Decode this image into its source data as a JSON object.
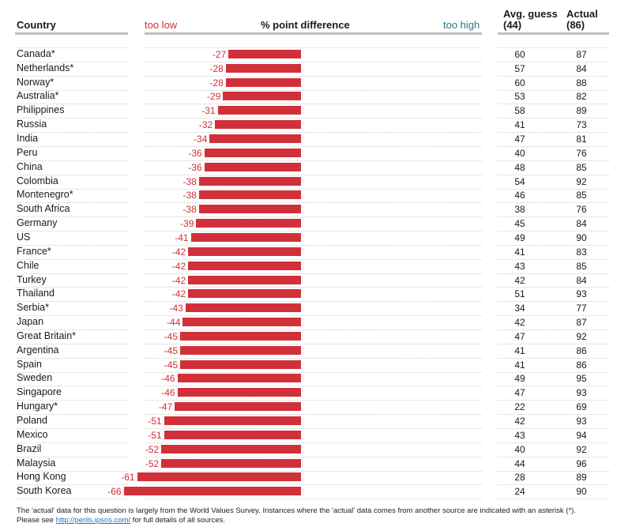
{
  "header": {
    "country": "Country",
    "too_low": "too low",
    "pct_diff": "% point difference",
    "too_high": "too high",
    "avg_guess_line1": "Avg. guess",
    "avg_guess_line2": "(44)",
    "actual_line1": "Actual",
    "actual_line2": "(86)"
  },
  "colors": {
    "bar": "#d1303a",
    "label": "#d1303a",
    "too_high": "#2a7b8c"
  },
  "chart_data": {
    "type": "bar",
    "xlabel": "% point difference",
    "categories": [
      "Canada*",
      "Netherlands*",
      "Norway*",
      "Australia*",
      "Philippines",
      "Russia",
      "India",
      "Peru",
      "China",
      "Colombia",
      "Montenegro*",
      "South Africa",
      "Germany",
      "US",
      "France*",
      "Chile",
      "Turkey",
      "Thailand",
      "Serbia*",
      "Japan",
      "Great Britain*",
      "Argentina",
      "Spain",
      "Sweden",
      "Singapore",
      "Hungary*",
      "Poland",
      "Mexico",
      "Brazil",
      "Malaysia",
      "Hong Kong",
      "South Korea"
    ],
    "series": [
      {
        "values": [
          -27,
          -28,
          -28,
          -29,
          -31,
          -32,
          -34,
          -36,
          -36,
          -38,
          -38,
          -38,
          -39,
          -41,
          -42,
          -42,
          -42,
          -42,
          -43,
          -44,
          -45,
          -45,
          -45,
          -46,
          -46,
          -47,
          -51,
          -51,
          -52,
          -52,
          -61,
          -66
        ]
      }
    ],
    "avg_guess": [
      60,
      57,
      60,
      53,
      58,
      41,
      47,
      40,
      48,
      54,
      46,
      38,
      45,
      49,
      41,
      43,
      42,
      51,
      34,
      42,
      47,
      41,
      41,
      49,
      47,
      22,
      42,
      43,
      40,
      44,
      28,
      24
    ],
    "actual": [
      87,
      84,
      88,
      82,
      89,
      73,
      81,
      76,
      85,
      92,
      85,
      76,
      84,
      90,
      83,
      85,
      84,
      93,
      77,
      87,
      92,
      86,
      86,
      95,
      93,
      69,
      93,
      94,
      92,
      96,
      89,
      90
    ],
    "xlim": [
      -70,
      0
    ],
    "grid": false
  },
  "footnote": {
    "line1": "The 'actual' data for this question is largely from the World Values Survey. Instances where the 'actual' data comes from another source are indicated with an asterisk (*).",
    "line2_before": "Please see ",
    "link": "http://perils.ipsos.com/",
    "line2_after": " for full details of all sources."
  }
}
